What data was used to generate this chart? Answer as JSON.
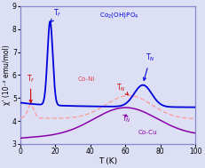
{
  "xlabel": "T (K)",
  "ylabel": "χ' (10⁻² emu/mol)",
  "xlim": [
    0,
    100
  ],
  "ylim": [
    3.0,
    9.0
  ],
  "yticks": [
    3,
    4,
    5,
    6,
    7,
    8,
    9
  ],
  "xticks": [
    0,
    20,
    40,
    60,
    80,
    100
  ],
  "bg_color": "#dde0f5",
  "blue_color": "#0000dd",
  "pink_color": "#ff9999",
  "purple_color": "#8800aa",
  "red_color": "#cc0000",
  "spine_color": "#8888cc"
}
